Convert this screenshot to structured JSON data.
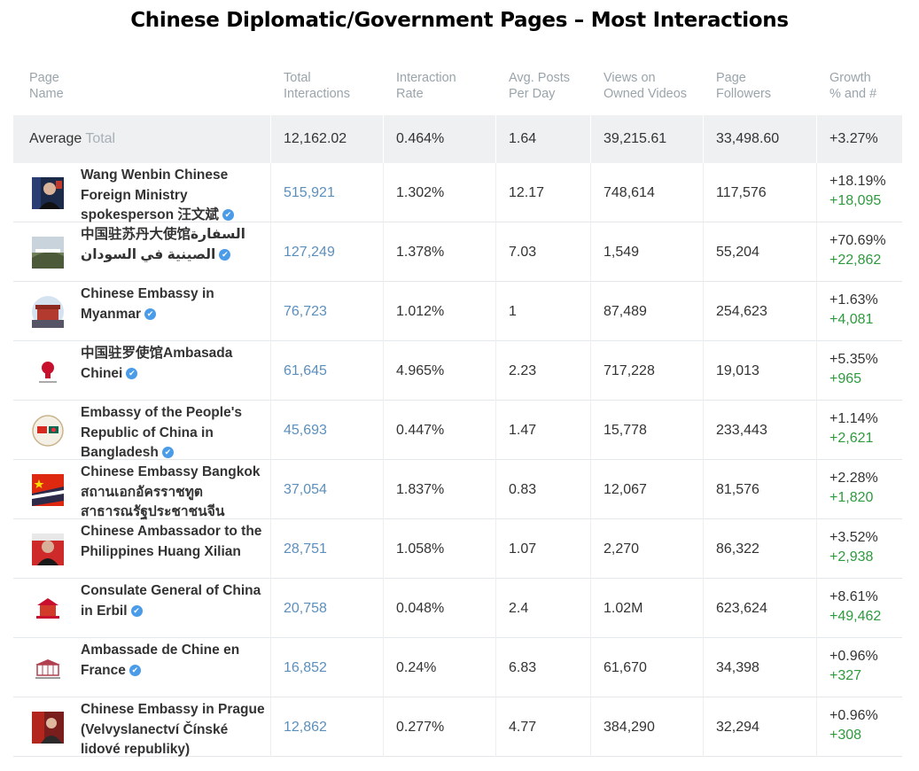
{
  "title": "Chinese Diplomatic/Government Pages – Most Interactions",
  "headers": {
    "page_name": [
      "Page",
      "Name"
    ],
    "total_interactions": [
      "Total",
      "Interactions"
    ],
    "interaction_rate": [
      "Interaction",
      "Rate"
    ],
    "avg_posts": [
      "Avg. Posts",
      "Per Day"
    ],
    "views": [
      "Views on",
      "Owned Videos"
    ],
    "followers": [
      "Page",
      "Followers"
    ],
    "growth": [
      "Growth",
      "% and #"
    ]
  },
  "average": {
    "label": "Average",
    "total_label": "Total",
    "total_interactions": "12,162.02",
    "interaction_rate": "0.464%",
    "avg_posts": "1.64",
    "views": "39,215.61",
    "followers": "33,498.60",
    "growth_pct": "+3.27%"
  },
  "verified_icon": "✔",
  "rows": [
    {
      "name": "Wang Wenbin Chinese Foreign Ministry spokesperson 汪文斌",
      "verified": true,
      "avatar": "portrait-dark",
      "total_interactions": "515,921",
      "interaction_rate": "1.302%",
      "avg_posts": "12.17",
      "views": "748,614",
      "followers": "117,576",
      "growth_pct": "+18.19%",
      "growth_abs": "+18,095"
    },
    {
      "name": "中国驻苏丹大使馆السفارة الصينية في السودان",
      "verified": true,
      "avatar": "landscape",
      "total_interactions": "127,249",
      "interaction_rate": "1.378%",
      "avg_posts": "7.03",
      "views": "1,549",
      "followers": "55,204",
      "growth_pct": "+70.69%",
      "growth_abs": "+22,862"
    },
    {
      "name": "Chinese Embassy in Myanmar",
      "verified": true,
      "avatar": "building-circle",
      "total_interactions": "76,723",
      "interaction_rate": "1.012%",
      "avg_posts": "1",
      "views": "87,489",
      "followers": "254,623",
      "growth_pct": "+1.63%",
      "growth_abs": "+4,081"
    },
    {
      "name": "中国驻罗使馆Ambasada Chinei",
      "verified": true,
      "avatar": "red-emblem",
      "total_interactions": "61,645",
      "interaction_rate": "4.965%",
      "avg_posts": "2.23",
      "views": "717,228",
      "followers": "19,013",
      "growth_pct": "+5.35%",
      "growth_abs": "+965"
    },
    {
      "name": "Embassy of the People's Republic of China in Bangladesh",
      "verified": true,
      "avatar": "flags-circle",
      "total_interactions": "45,693",
      "interaction_rate": "0.447%",
      "avg_posts": "1.47",
      "views": "15,778",
      "followers": "233,443",
      "growth_pct": "+1.14%",
      "growth_abs": "+2,621"
    },
    {
      "name": "Chinese Embassy Bangkok สถานเอกอัครราชทูตสาธารณรัฐประชาชนจีน",
      "verified": false,
      "avatar": "flag-red",
      "total_interactions": "37,054",
      "interaction_rate": "1.837%",
      "avg_posts": "0.83",
      "views": "12,067",
      "followers": "81,576",
      "growth_pct": "+2.28%",
      "growth_abs": "+1,820"
    },
    {
      "name": "Chinese Ambassador to the Philippines Huang Xilian",
      "verified": false,
      "avatar": "portrait-red",
      "total_interactions": "28,751",
      "interaction_rate": "1.058%",
      "avg_posts": "1.07",
      "views": "2,270",
      "followers": "86,322",
      "growth_pct": "+3.52%",
      "growth_abs": "+2,938"
    },
    {
      "name": "Consulate General of China in Erbil",
      "verified": true,
      "avatar": "red-building",
      "total_interactions": "20,758",
      "interaction_rate": "0.048%",
      "avg_posts": "2.4",
      "views": "1.02M",
      "followers": "623,624",
      "growth_pct": "+8.61%",
      "growth_abs": "+49,462"
    },
    {
      "name": "Ambassade de Chine en France",
      "verified": true,
      "avatar": "building-sketch",
      "total_interactions": "16,852",
      "interaction_rate": "0.24%",
      "avg_posts": "6.83",
      "views": "61,670",
      "followers": "34,398",
      "growth_pct": "+0.96%",
      "growth_abs": "+327"
    },
    {
      "name": "Chinese Embassy in Prague (Velvyslanectví Čínské lidové republiky)",
      "verified": false,
      "avatar": "photo-red",
      "total_interactions": "12,862",
      "interaction_rate": "0.277%",
      "avg_posts": "4.77",
      "views": "384,290",
      "followers": "32,294",
      "growth_pct": "+0.96%",
      "growth_abs": "+308"
    }
  ]
}
